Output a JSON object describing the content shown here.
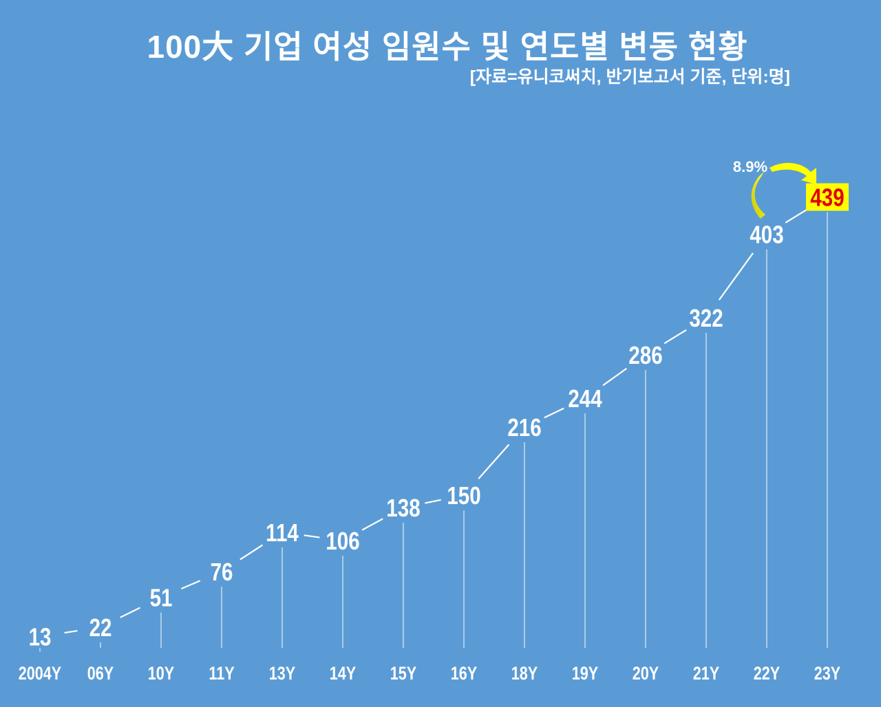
{
  "chart_data": {
    "type": "line",
    "title": "100大 기업 여성 임원수 및 연도별 변동 현황",
    "subtitle": "[자료=유니코써치, 반기보고서 기준, 단위:명]",
    "categories": [
      "2004Y",
      "06Y",
      "10Y",
      "11Y",
      "13Y",
      "14Y",
      "15Y",
      "16Y",
      "18Y",
      "19Y",
      "20Y",
      "21Y",
      "22Y",
      "23Y"
    ],
    "values": [
      13,
      22,
      51,
      76,
      114,
      106,
      138,
      150,
      216,
      244,
      286,
      322,
      403,
      439
    ],
    "data_labels": [
      "13",
      "22",
      "51",
      "76",
      "114",
      "106",
      "138",
      "150",
      "216",
      "244",
      "286",
      "322",
      "403",
      "439"
    ],
    "annotation": {
      "text": "8.9%",
      "from": "22Y",
      "to": "23Y"
    },
    "highlight": {
      "category": "23Y",
      "box_color": "#ffff00",
      "text_color": "#e00000"
    },
    "ylim": [
      0,
      460
    ],
    "grid": false,
    "colors": {
      "background": "#5b9bd5",
      "line": "#ffffff",
      "arrow": "#ffff00"
    }
  }
}
